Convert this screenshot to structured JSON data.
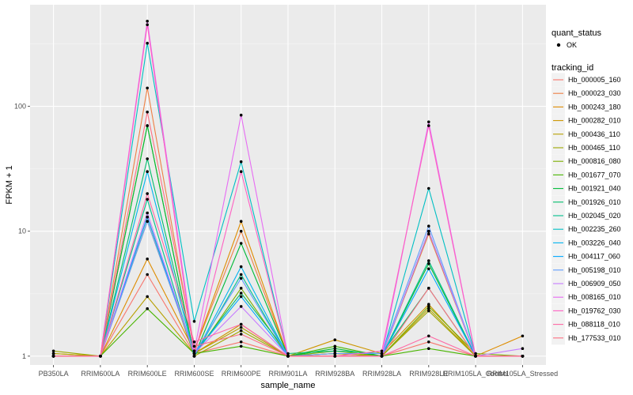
{
  "chart_data": {
    "type": "line",
    "title": "",
    "xlabel": "sample_name",
    "ylabel": "FPKM + 1",
    "y_scale": "log10",
    "ylim": [
      0.85,
      650
    ],
    "y_ticks": [
      1,
      10,
      100
    ],
    "y_tick_labels": [
      "1",
      "10",
      "100"
    ],
    "grid": true,
    "legend_position": "right",
    "categories": [
      "PB350LA",
      "RRIM600LA",
      "RRIM600LE",
      "RRIM600SE",
      "RRIM600PE",
      "RRIM901LA",
      "RRIM928BA",
      "RRIM928LA",
      "RRIM928LE",
      "RRIM105LA_Control",
      "RRIM105LA_Stressed"
    ],
    "point_legend": {
      "title": "quant_status",
      "entries": [
        "OK"
      ]
    },
    "color_legend_title": "tracking_id",
    "series": [
      {
        "name": "Hb_000005_160",
        "color": "#F8766D",
        "values": [
          1.0,
          1.0,
          4.5,
          1.05,
          1.3,
          1.0,
          1.0,
          1.0,
          1.3,
          1.0,
          1.0
        ]
      },
      {
        "name": "Hb_000023_030",
        "color": "#EE8044",
        "values": [
          1.0,
          1.0,
          140,
          1.1,
          10,
          1.0,
          1.05,
          1.0,
          9.5,
          1.0,
          1.0
        ]
      },
      {
        "name": "Hb_000243_180",
        "color": "#DE8C00",
        "values": [
          1.0,
          1.0,
          6.0,
          1.1,
          12,
          1.0,
          1.05,
          1.0,
          10,
          1.0,
          1.45
        ]
      },
      {
        "name": "Hb_000282_010",
        "color": "#CD9600",
        "values": [
          1.05,
          1.0,
          12,
          1.05,
          1.8,
          1.0,
          1.35,
          1.05,
          2.6,
          1.0,
          1.0
        ]
      },
      {
        "name": "Hb_000436_110",
        "color": "#B79F00",
        "values": [
          1.05,
          1.0,
          3.0,
          1.05,
          1.7,
          1.0,
          1.0,
          1.0,
          2.4,
          1.0,
          1.0
        ]
      },
      {
        "name": "Hb_000465_110",
        "color": "#9DA700",
        "values": [
          1.1,
          1.0,
          13,
          1.0,
          1.6,
          1.0,
          1.05,
          1.0,
          2.3,
          1.0,
          1.0
        ]
      },
      {
        "name": "Hb_000816_080",
        "color": "#7CAE00",
        "values": [
          1.0,
          1.0,
          70,
          1.0,
          3.5,
          1.0,
          1.1,
          1.0,
          2.5,
          1.05,
          1.0
        ]
      },
      {
        "name": "Hb_001677_070",
        "color": "#49B500",
        "values": [
          1.0,
          1.0,
          2.4,
          1.05,
          1.2,
          1.0,
          1.2,
          1.0,
          1.15,
          1.0,
          1.0
        ]
      },
      {
        "name": "Hb_001921_040",
        "color": "#00BA38",
        "values": [
          1.0,
          1.0,
          70,
          1.0,
          8,
          1.0,
          1.15,
          1.0,
          5.5,
          1.0,
          1.0
        ]
      },
      {
        "name": "Hb_001926_010",
        "color": "#00BE6C",
        "values": [
          1.0,
          1.0,
          38,
          1.05,
          3.2,
          1.05,
          1.1,
          1.05,
          3.5,
          1.0,
          1.0
        ]
      },
      {
        "name": "Hb_002045_020",
        "color": "#00C08B",
        "values": [
          1.0,
          1.0,
          18,
          1.0,
          4.5,
          1.0,
          1.0,
          1.0,
          5.8,
          1.0,
          1.0
        ]
      },
      {
        "name": "Hb_002235_260",
        "color": "#00BFC4",
        "values": [
          1.0,
          1.0,
          320,
          1.9,
          36,
          1.0,
          1.0,
          1.0,
          22,
          1.0,
          1.0
        ]
      },
      {
        "name": "Hb_003226_040",
        "color": "#00B4F0",
        "values": [
          1.0,
          1.0,
          30,
          1.0,
          5.2,
          1.0,
          1.0,
          1.0,
          10,
          1.0,
          1.0
        ]
      },
      {
        "name": "Hb_004117_060",
        "color": "#00A9FF",
        "values": [
          1.0,
          1.0,
          13,
          1.05,
          3.0,
          1.0,
          1.0,
          1.0,
          5.0,
          1.0,
          1.0
        ]
      },
      {
        "name": "Hb_005198_010",
        "color": "#619CFF",
        "values": [
          1.0,
          1.0,
          12,
          1.05,
          4.2,
          1.0,
          1.05,
          1.05,
          11,
          1.0,
          1.0
        ]
      },
      {
        "name": "Hb_006909_050",
        "color": "#C77CFF",
        "values": [
          1.0,
          1.0,
          14,
          1.05,
          2.5,
          1.0,
          1.0,
          1.0,
          10,
          1.0,
          1.15
        ]
      },
      {
        "name": "Hb_008165_010",
        "color": "#E76BF3",
        "values": [
          1.0,
          1.0,
          480,
          1.1,
          85,
          1.0,
          1.0,
          1.0,
          75,
          1.0,
          1.0
        ]
      },
      {
        "name": "Hb_019762_030",
        "color": "#FF61C3",
        "values": [
          1.0,
          1.0,
          450,
          1.0,
          30,
          1.0,
          1.0,
          1.1,
          70,
          1.0,
          1.0
        ]
      },
      {
        "name": "Hb_088118_010",
        "color": "#FF67A4",
        "values": [
          1.0,
          1.0,
          20,
          1.3,
          1.8,
          1.0,
          1.0,
          1.0,
          1.45,
          1.0,
          1.0
        ]
      },
      {
        "name": "Hb_177533_010",
        "color": "#FD6F82",
        "values": [
          1.0,
          1.0,
          90,
          1.2,
          1.5,
          1.0,
          1.0,
          1.0,
          3.5,
          1.0,
          1.0
        ]
      }
    ]
  }
}
